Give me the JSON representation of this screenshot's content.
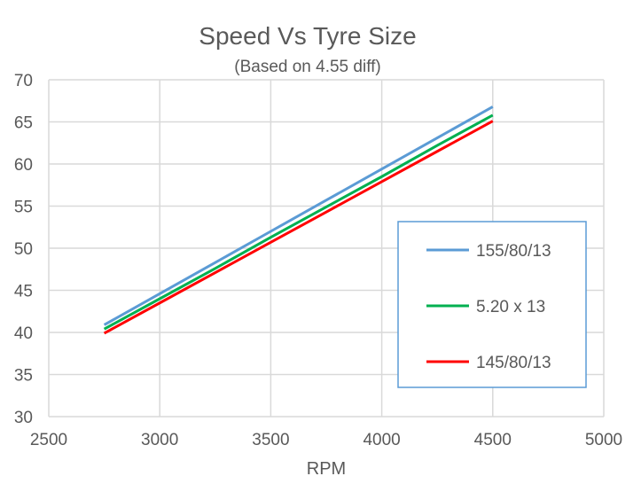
{
  "chart_data": {
    "type": "line",
    "title": "Speed Vs Tyre Size",
    "subtitle": "(Based on 4.55 diff)",
    "xlabel": "RPM",
    "ylabel": "",
    "xlim": [
      2500,
      5000
    ],
    "ylim": [
      30,
      70
    ],
    "xticks": [
      2500,
      3000,
      3500,
      4000,
      4500,
      5000
    ],
    "yticks": [
      30,
      35,
      40,
      45,
      50,
      55,
      60,
      65,
      70
    ],
    "grid": true,
    "legend_position": "right",
    "x": [
      2750,
      3000,
      3250,
      3500,
      3750,
      4000,
      4250,
      4500
    ],
    "series": [
      {
        "name": "155/80/13",
        "color": "#5b9bd5",
        "values": [
          40.9,
          44.6,
          48.3,
          52.0,
          55.7,
          59.4,
          63.1,
          66.8
        ]
      },
      {
        "name": "5.20 x 13",
        "color": "#00b050",
        "values": [
          40.4,
          44.0,
          47.6,
          51.3,
          54.9,
          58.5,
          62.2,
          65.8
        ]
      },
      {
        "name": "145/80/13",
        "color": "#ff0000",
        "values": [
          39.9,
          43.5,
          47.1,
          50.7,
          54.3,
          57.9,
          61.5,
          65.1
        ]
      }
    ]
  }
}
